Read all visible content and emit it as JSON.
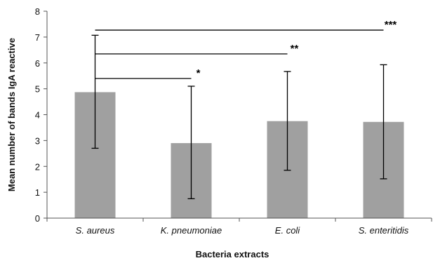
{
  "chart_data": {
    "type": "bar",
    "title": "",
    "xlabel": "Bacteria extracts",
    "ylabel": "Mean number of bands IgA reactive",
    "ylim": [
      0,
      8
    ],
    "yticks": [
      "0",
      "1",
      "2",
      "3",
      "4",
      "5",
      "6",
      "7",
      "8"
    ],
    "grid": false,
    "bar_color": "#a0a0a0",
    "categories": [
      "S. aureus",
      "K. pneumoniae",
      "E. coli",
      "S. enteritidis"
    ],
    "values": [
      4.87,
      2.9,
      3.75,
      3.72
    ],
    "error_upper": [
      7.07,
      5.1,
      5.67,
      5.93
    ],
    "error_lower": [
      2.7,
      0.75,
      1.85,
      1.52
    ],
    "significance": [
      {
        "from": 0,
        "to": 1,
        "y": 5.4,
        "label": "*"
      },
      {
        "from": 0,
        "to": 2,
        "y": 6.35,
        "label": "**"
      },
      {
        "from": 0,
        "to": 3,
        "y": 7.27,
        "label": "***"
      }
    ]
  }
}
